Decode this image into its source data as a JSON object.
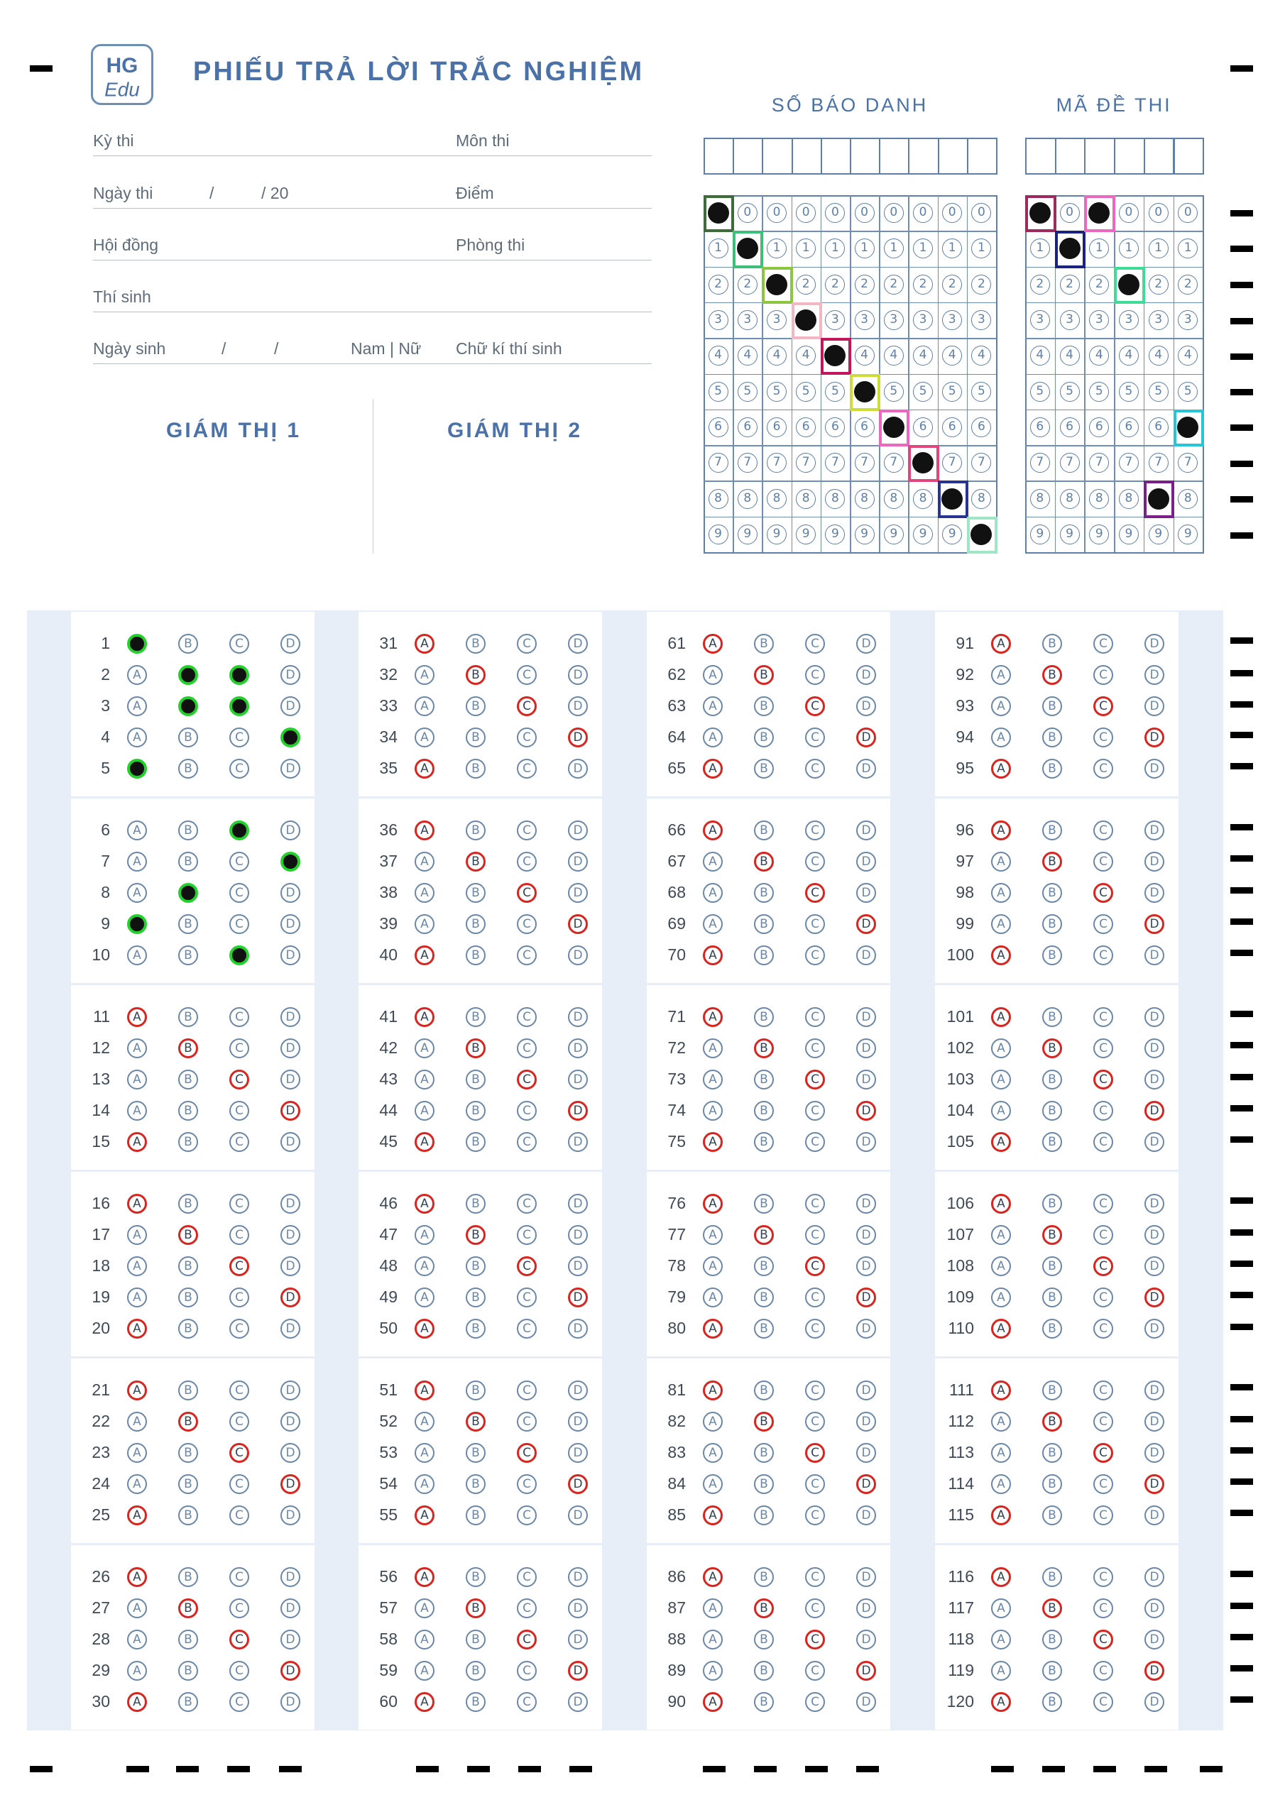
{
  "header": {
    "logo_text": [
      "HG",
      "Edu"
    ],
    "title": "PHIẾU TRẢ LỜI TRẮC NGHIỆM",
    "fields": [
      {
        "label": "Kỳ thi",
        "right_label": "Môn thi"
      },
      {
        "label": "Ngày thi",
        "date_parts": [
          "/",
          "/ 20"
        ],
        "right_label": "Điểm"
      },
      {
        "label": "Hội đồng",
        "right_label": "Phòng thi"
      },
      {
        "label": "Thí sinh",
        "right_label": ""
      },
      {
        "label": "Ngày sinh",
        "date_parts": [
          "/",
          "/"
        ],
        "gender": "Nam  |  Nữ",
        "right_label": "Chữ kí thí sinh"
      }
    ],
    "proctor_1": "GIÁM THỊ 1",
    "proctor_2": "GIÁM THỊ 2"
  },
  "candidate_id": {
    "title": "SỐ BÁO DANH",
    "columns": 10,
    "digits": [
      "0",
      "1",
      "2",
      "3",
      "4",
      "5",
      "6",
      "7",
      "8",
      "9"
    ],
    "selected": [
      0,
      1,
      2,
      3,
      4,
      5,
      6,
      7,
      8,
      9
    ],
    "highlight_colors": [
      "#3d6b3a",
      "#3dbf7a",
      "#8cc63f",
      "#f4b6c2",
      "#c2185b",
      "#cddc39",
      "#ec68c0",
      "#e0457b",
      "#283593",
      "#9ee6c6"
    ]
  },
  "exam_code": {
    "title": "MÃ ĐỀ THI",
    "columns": 6,
    "digits": [
      "0",
      "1",
      "2",
      "3",
      "4",
      "5",
      "6",
      "7",
      "8",
      "9"
    ],
    "selected": [
      0,
      1,
      0,
      2,
      8,
      6
    ],
    "highlight_colors": [
      "#9c2a5e",
      "#1a237e",
      "#ec68c0",
      "#3ddc97",
      "#7b1f8c",
      "#26c6da"
    ]
  },
  "answers": {
    "options": [
      "A",
      "B",
      "C",
      "D"
    ],
    "total": 120,
    "filled": {
      "1": [
        0
      ],
      "2": [
        1,
        2
      ],
      "3": [
        1,
        2
      ],
      "4": [
        3
      ],
      "5": [
        0
      ],
      "6": [
        2
      ],
      "7": [
        3
      ],
      "8": [
        1
      ],
      "9": [
        0
      ],
      "10": [
        2
      ]
    },
    "marked_pattern": [
      0,
      1,
      2,
      3,
      0
    ]
  }
}
